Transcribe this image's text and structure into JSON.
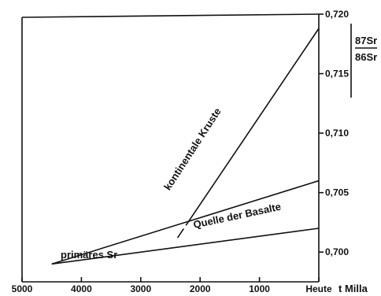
{
  "chart_data": {
    "type": "line",
    "xlabel": "t Milla",
    "ylabel_numerator": "87Sr",
    "ylabel_denominator": "86Sr",
    "xlim": [
      5000,
      0
    ],
    "ylim": [
      0.6975,
      0.72
    ],
    "x_ticks": [
      5000,
      4000,
      3000,
      2000,
      1000,
      0
    ],
    "x_tick_labels": [
      "5000",
      "4000",
      "3000",
      "2000",
      "1000",
      "Heute"
    ],
    "y_ticks": [
      0.7,
      0.705,
      0.71,
      0.715,
      0.72
    ],
    "y_tick_labels": [
      "0,700",
      "0,705",
      "0,710",
      "0,715",
      "0,720"
    ],
    "series": [
      {
        "name": "kontinentale Kruste",
        "x": [
          2380,
          0
        ],
        "y": [
          0.7012,
          0.7188
        ]
      },
      {
        "name": "Quelle der Basalte",
        "x": [
          4500,
          0
        ],
        "y": [
          0.699,
          0.706
        ]
      },
      {
        "x": [
          4500,
          0
        ],
        "y": [
          0.699,
          0.702
        ]
      }
    ],
    "annotations": [
      {
        "text": "primäres Sr",
        "x": 4350,
        "y": 0.6995
      },
      {
        "text": "Quelle der Basalte",
        "x": 2100,
        "y": 0.702
      },
      {
        "text": "kontinentale Kruste",
        "x": 2080,
        "y": 0.7085
      }
    ]
  }
}
